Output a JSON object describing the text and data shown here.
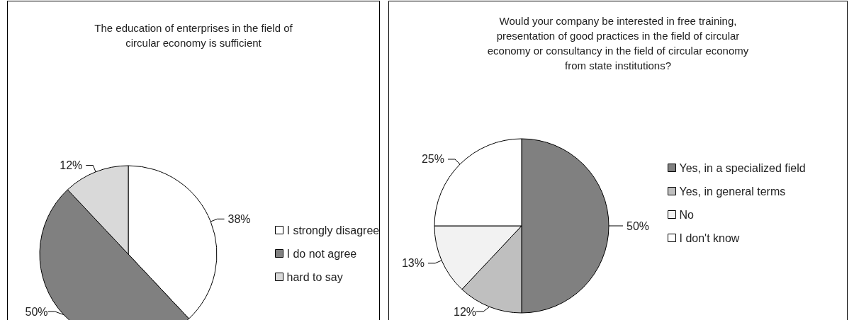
{
  "chart_data": [
    {
      "type": "pie",
      "title": "The education of enterprises in the field of\ncircular economy is sufficient",
      "categories": [
        "I strongly disagree",
        "I do not agree",
        "hard to say"
      ],
      "values": [
        38,
        50,
        12
      ],
      "colors": [
        "#ffffff",
        "#808080",
        "#d9d9d9"
      ],
      "value_labels": [
        "38%",
        "50%",
        "12%"
      ],
      "legend": "right"
    },
    {
      "type": "pie",
      "title": "Would your company be interested in free training,\npresentation of good practices in the field of circular\neconomy or consultancy in the field of circular economy\nfrom state institutions?",
      "categories": [
        "Yes, in a specialized field",
        "Yes, in general terms",
        "No",
        "I don't know"
      ],
      "values": [
        50,
        12,
        13,
        25
      ],
      "colors": [
        "#808080",
        "#bfbfbf",
        "#f2f2f2",
        "#ffffff"
      ],
      "value_labels": [
        "50%",
        "12%",
        "13%",
        "25%"
      ],
      "legend": "right"
    }
  ]
}
